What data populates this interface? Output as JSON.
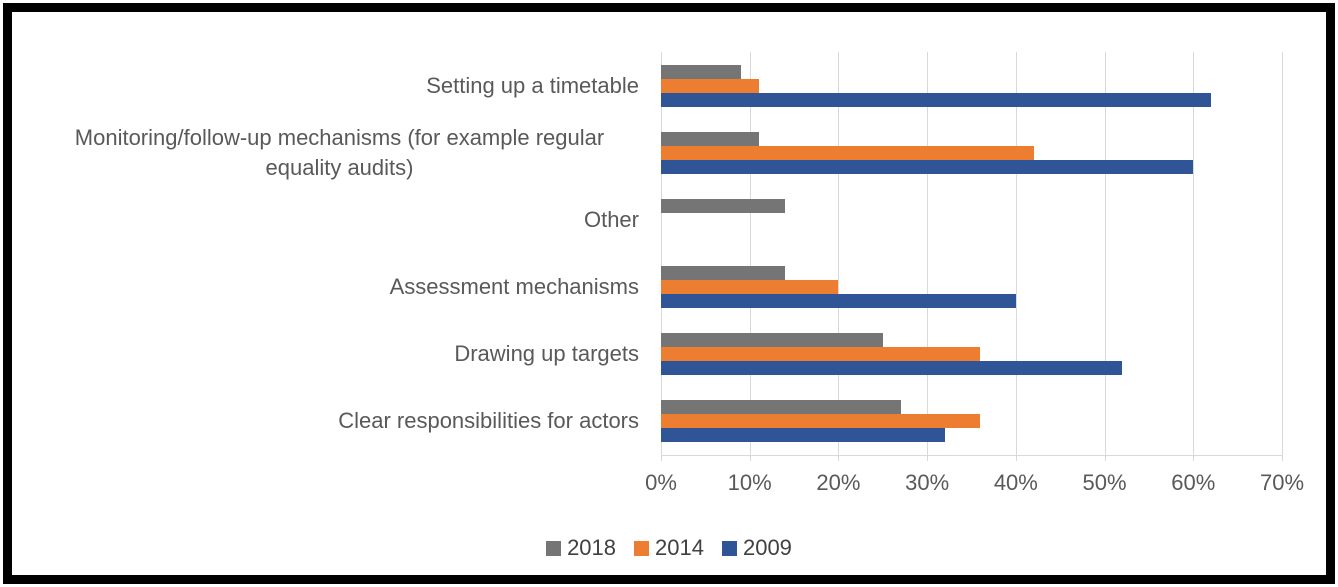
{
  "chart_data": {
    "type": "bar",
    "orientation": "horizontal",
    "title": "",
    "categories": [
      "Setting up a timetable",
      "Monitoring/follow-up mechanisms (for example regular equality audits)",
      "Other",
      "Assessment mechanisms",
      "Drawing up targets",
      "Clear responsibilities for actors"
    ],
    "series": [
      {
        "name": "2018",
        "color": "#757575",
        "values": [
          9,
          11,
          14,
          14,
          25,
          27
        ]
      },
      {
        "name": "2014",
        "color": "#ED7D31",
        "values": [
          11,
          42,
          0,
          20,
          36,
          36
        ]
      },
      {
        "name": "2009",
        "color": "#2F5597",
        "values": [
          62,
          60,
          0,
          40,
          52,
          32
        ]
      }
    ],
    "x_axis": {
      "min": 0,
      "max": 70,
      "tick_step": 10,
      "tick_labels": [
        "0%",
        "10%",
        "20%",
        "30%",
        "40%",
        "50%",
        "60%",
        "70%"
      ],
      "unit": "%"
    },
    "grid": true,
    "legend_position": "bottom",
    "legend_entries": [
      "2018",
      "2014",
      "2009"
    ]
  },
  "colors": {
    "gridline": "#d9d9d9",
    "axis_text": "#595959",
    "category_text": "#595959",
    "legend_text": "#404040",
    "frame_border": "#000000",
    "background": "#ffffff"
  }
}
